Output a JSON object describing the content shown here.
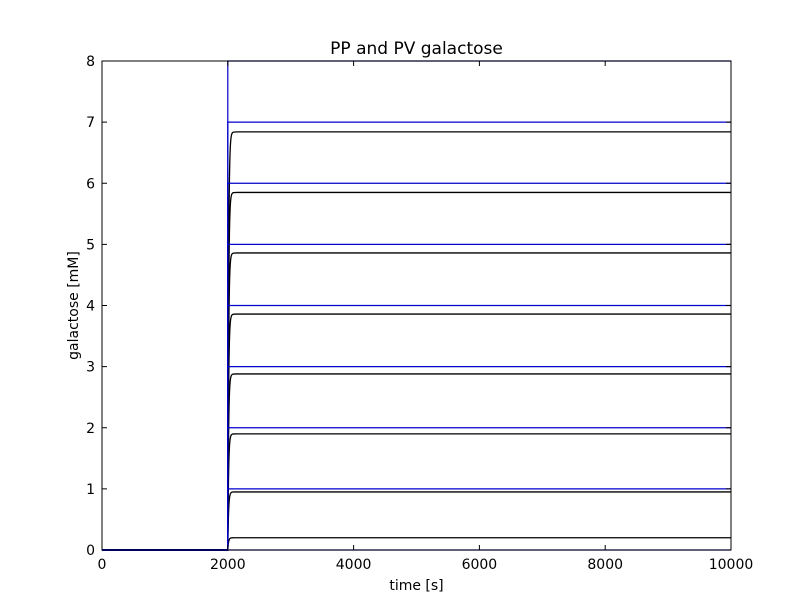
{
  "chart_data": {
    "type": "line",
    "title": "PP and PV galactose",
    "xlabel": "time [s]",
    "ylabel": "galactose [mM]",
    "xlim": [
      0,
      10000
    ],
    "ylim": [
      0,
      8
    ],
    "xticks": [
      0,
      2000,
      4000,
      6000,
      8000,
      10000
    ],
    "yticks": [
      0,
      1,
      2,
      3,
      4,
      5,
      6,
      7,
      8
    ],
    "grid": false,
    "legend": "none",
    "step_time": 2000,
    "pp_levels": [
      0,
      1,
      2,
      3,
      4,
      5,
      6,
      7,
      8
    ],
    "pv_levels": [
      0.2,
      0.95,
      1.9,
      2.88,
      3.86,
      4.86,
      5.85,
      6.84
    ],
    "colors": {
      "pp": "#0000cc",
      "pv": "#000000"
    }
  }
}
